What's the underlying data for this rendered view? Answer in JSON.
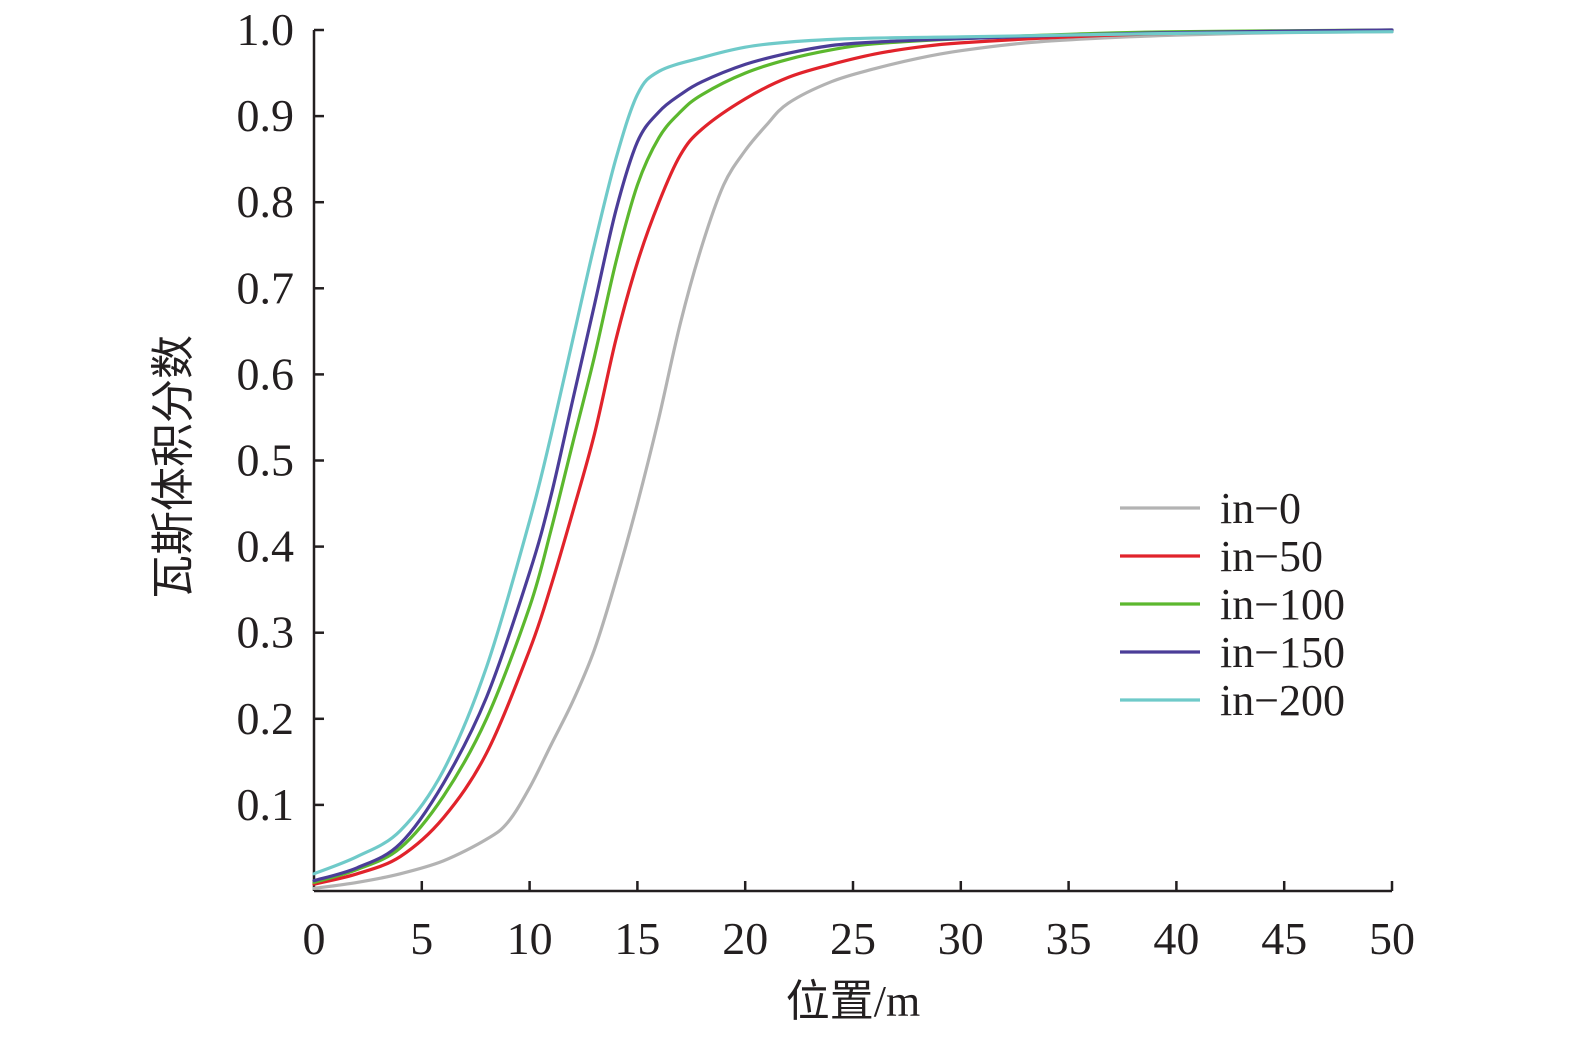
{
  "chart_data": {
    "type": "line",
    "title": "",
    "xlabel": "位置/m",
    "ylabel": "瓦斯体积分数",
    "xlim": [
      0,
      50
    ],
    "ylim": [
      0,
      1.0
    ],
    "x_ticks": [
      0,
      5,
      10,
      15,
      20,
      25,
      30,
      35,
      40,
      45,
      50
    ],
    "x_tick_labels": [
      "0",
      "5",
      "10",
      "15",
      "20",
      "25",
      "30",
      "35",
      "40",
      "45",
      "50"
    ],
    "y_ticks": [
      0.1,
      0.2,
      0.3,
      0.4,
      0.5,
      0.6,
      0.7,
      0.8,
      0.9,
      1.0
    ],
    "y_tick_labels": [
      "0.1",
      "0.2",
      "0.3",
      "0.4",
      "0.5",
      "0.6",
      "0.7",
      "0.8",
      "0.9",
      "1.0"
    ],
    "grid": false,
    "legend_position": "right",
    "series": [
      {
        "name": "in−0",
        "color": "#b3b3b3",
        "points": [
          [
            0,
            0.003
          ],
          [
            2,
            0.01
          ],
          [
            4,
            0.02
          ],
          [
            6,
            0.035
          ],
          [
            8,
            0.06
          ],
          [
            9,
            0.08
          ],
          [
            10,
            0.12
          ],
          [
            11,
            0.17
          ],
          [
            12,
            0.22
          ],
          [
            13,
            0.28
          ],
          [
            14,
            0.36
          ],
          [
            15,
            0.45
          ],
          [
            16,
            0.55
          ],
          [
            17,
            0.66
          ],
          [
            18,
            0.75
          ],
          [
            19,
            0.82
          ],
          [
            20,
            0.86
          ],
          [
            21,
            0.89
          ],
          [
            22,
            0.915
          ],
          [
            24,
            0.94
          ],
          [
            26,
            0.955
          ],
          [
            28,
            0.967
          ],
          [
            30,
            0.976
          ],
          [
            33,
            0.985
          ],
          [
            36,
            0.99
          ],
          [
            40,
            0.994
          ],
          [
            45,
            0.997
          ],
          [
            50,
            0.998
          ]
        ]
      },
      {
        "name": "in−50",
        "color": "#e1232b",
        "points": [
          [
            0,
            0.008
          ],
          [
            2,
            0.02
          ],
          [
            4,
            0.04
          ],
          [
            6,
            0.085
          ],
          [
            8,
            0.16
          ],
          [
            10,
            0.28
          ],
          [
            11,
            0.355
          ],
          [
            12,
            0.44
          ],
          [
            13,
            0.53
          ],
          [
            14,
            0.64
          ],
          [
            15,
            0.73
          ],
          [
            16,
            0.8
          ],
          [
            17,
            0.855
          ],
          [
            18,
            0.885
          ],
          [
            20,
            0.92
          ],
          [
            22,
            0.945
          ],
          [
            24,
            0.96
          ],
          [
            26,
            0.972
          ],
          [
            28,
            0.98
          ],
          [
            30,
            0.985
          ],
          [
            35,
            0.992
          ],
          [
            40,
            0.996
          ],
          [
            50,
            0.999
          ]
        ]
      },
      {
        "name": "in−100",
        "color": "#5cb82e",
        "points": [
          [
            0,
            0.01
          ],
          [
            2,
            0.025
          ],
          [
            4,
            0.05
          ],
          [
            6,
            0.11
          ],
          [
            8,
            0.2
          ],
          [
            10,
            0.33
          ],
          [
            11,
            0.42
          ],
          [
            12,
            0.52
          ],
          [
            13,
            0.62
          ],
          [
            14,
            0.73
          ],
          [
            15,
            0.82
          ],
          [
            16,
            0.875
          ],
          [
            17,
            0.905
          ],
          [
            18,
            0.925
          ],
          [
            20,
            0.95
          ],
          [
            22,
            0.966
          ],
          [
            24,
            0.977
          ],
          [
            26,
            0.984
          ],
          [
            30,
            0.99
          ],
          [
            35,
            0.995
          ],
          [
            40,
            0.998
          ],
          [
            50,
            1.0
          ]
        ]
      },
      {
        "name": "in−150",
        "color": "#4b3d98",
        "points": [
          [
            0,
            0.012
          ],
          [
            2,
            0.027
          ],
          [
            4,
            0.055
          ],
          [
            6,
            0.125
          ],
          [
            8,
            0.225
          ],
          [
            10,
            0.37
          ],
          [
            11,
            0.46
          ],
          [
            12,
            0.57
          ],
          [
            13,
            0.68
          ],
          [
            14,
            0.79
          ],
          [
            15,
            0.87
          ],
          [
            16,
            0.905
          ],
          [
            17,
            0.925
          ],
          [
            18,
            0.94
          ],
          [
            20,
            0.96
          ],
          [
            22,
            0.973
          ],
          [
            24,
            0.982
          ],
          [
            26,
            0.986
          ],
          [
            30,
            0.99
          ],
          [
            35,
            0.994
          ],
          [
            40,
            0.997
          ],
          [
            50,
            1.0
          ]
        ]
      },
      {
        "name": "in−200",
        "color": "#6fcac9",
        "points": [
          [
            0,
            0.02
          ],
          [
            2,
            0.04
          ],
          [
            4,
            0.07
          ],
          [
            6,
            0.14
          ],
          [
            8,
            0.26
          ],
          [
            10,
            0.43
          ],
          [
            11,
            0.53
          ],
          [
            12,
            0.64
          ],
          [
            13,
            0.75
          ],
          [
            14,
            0.85
          ],
          [
            15,
            0.925
          ],
          [
            16,
            0.952
          ],
          [
            18,
            0.968
          ],
          [
            20,
            0.98
          ],
          [
            22,
            0.986
          ],
          [
            25,
            0.99
          ],
          [
            30,
            0.992
          ],
          [
            40,
            0.996
          ],
          [
            50,
            0.998
          ]
        ]
      }
    ]
  }
}
